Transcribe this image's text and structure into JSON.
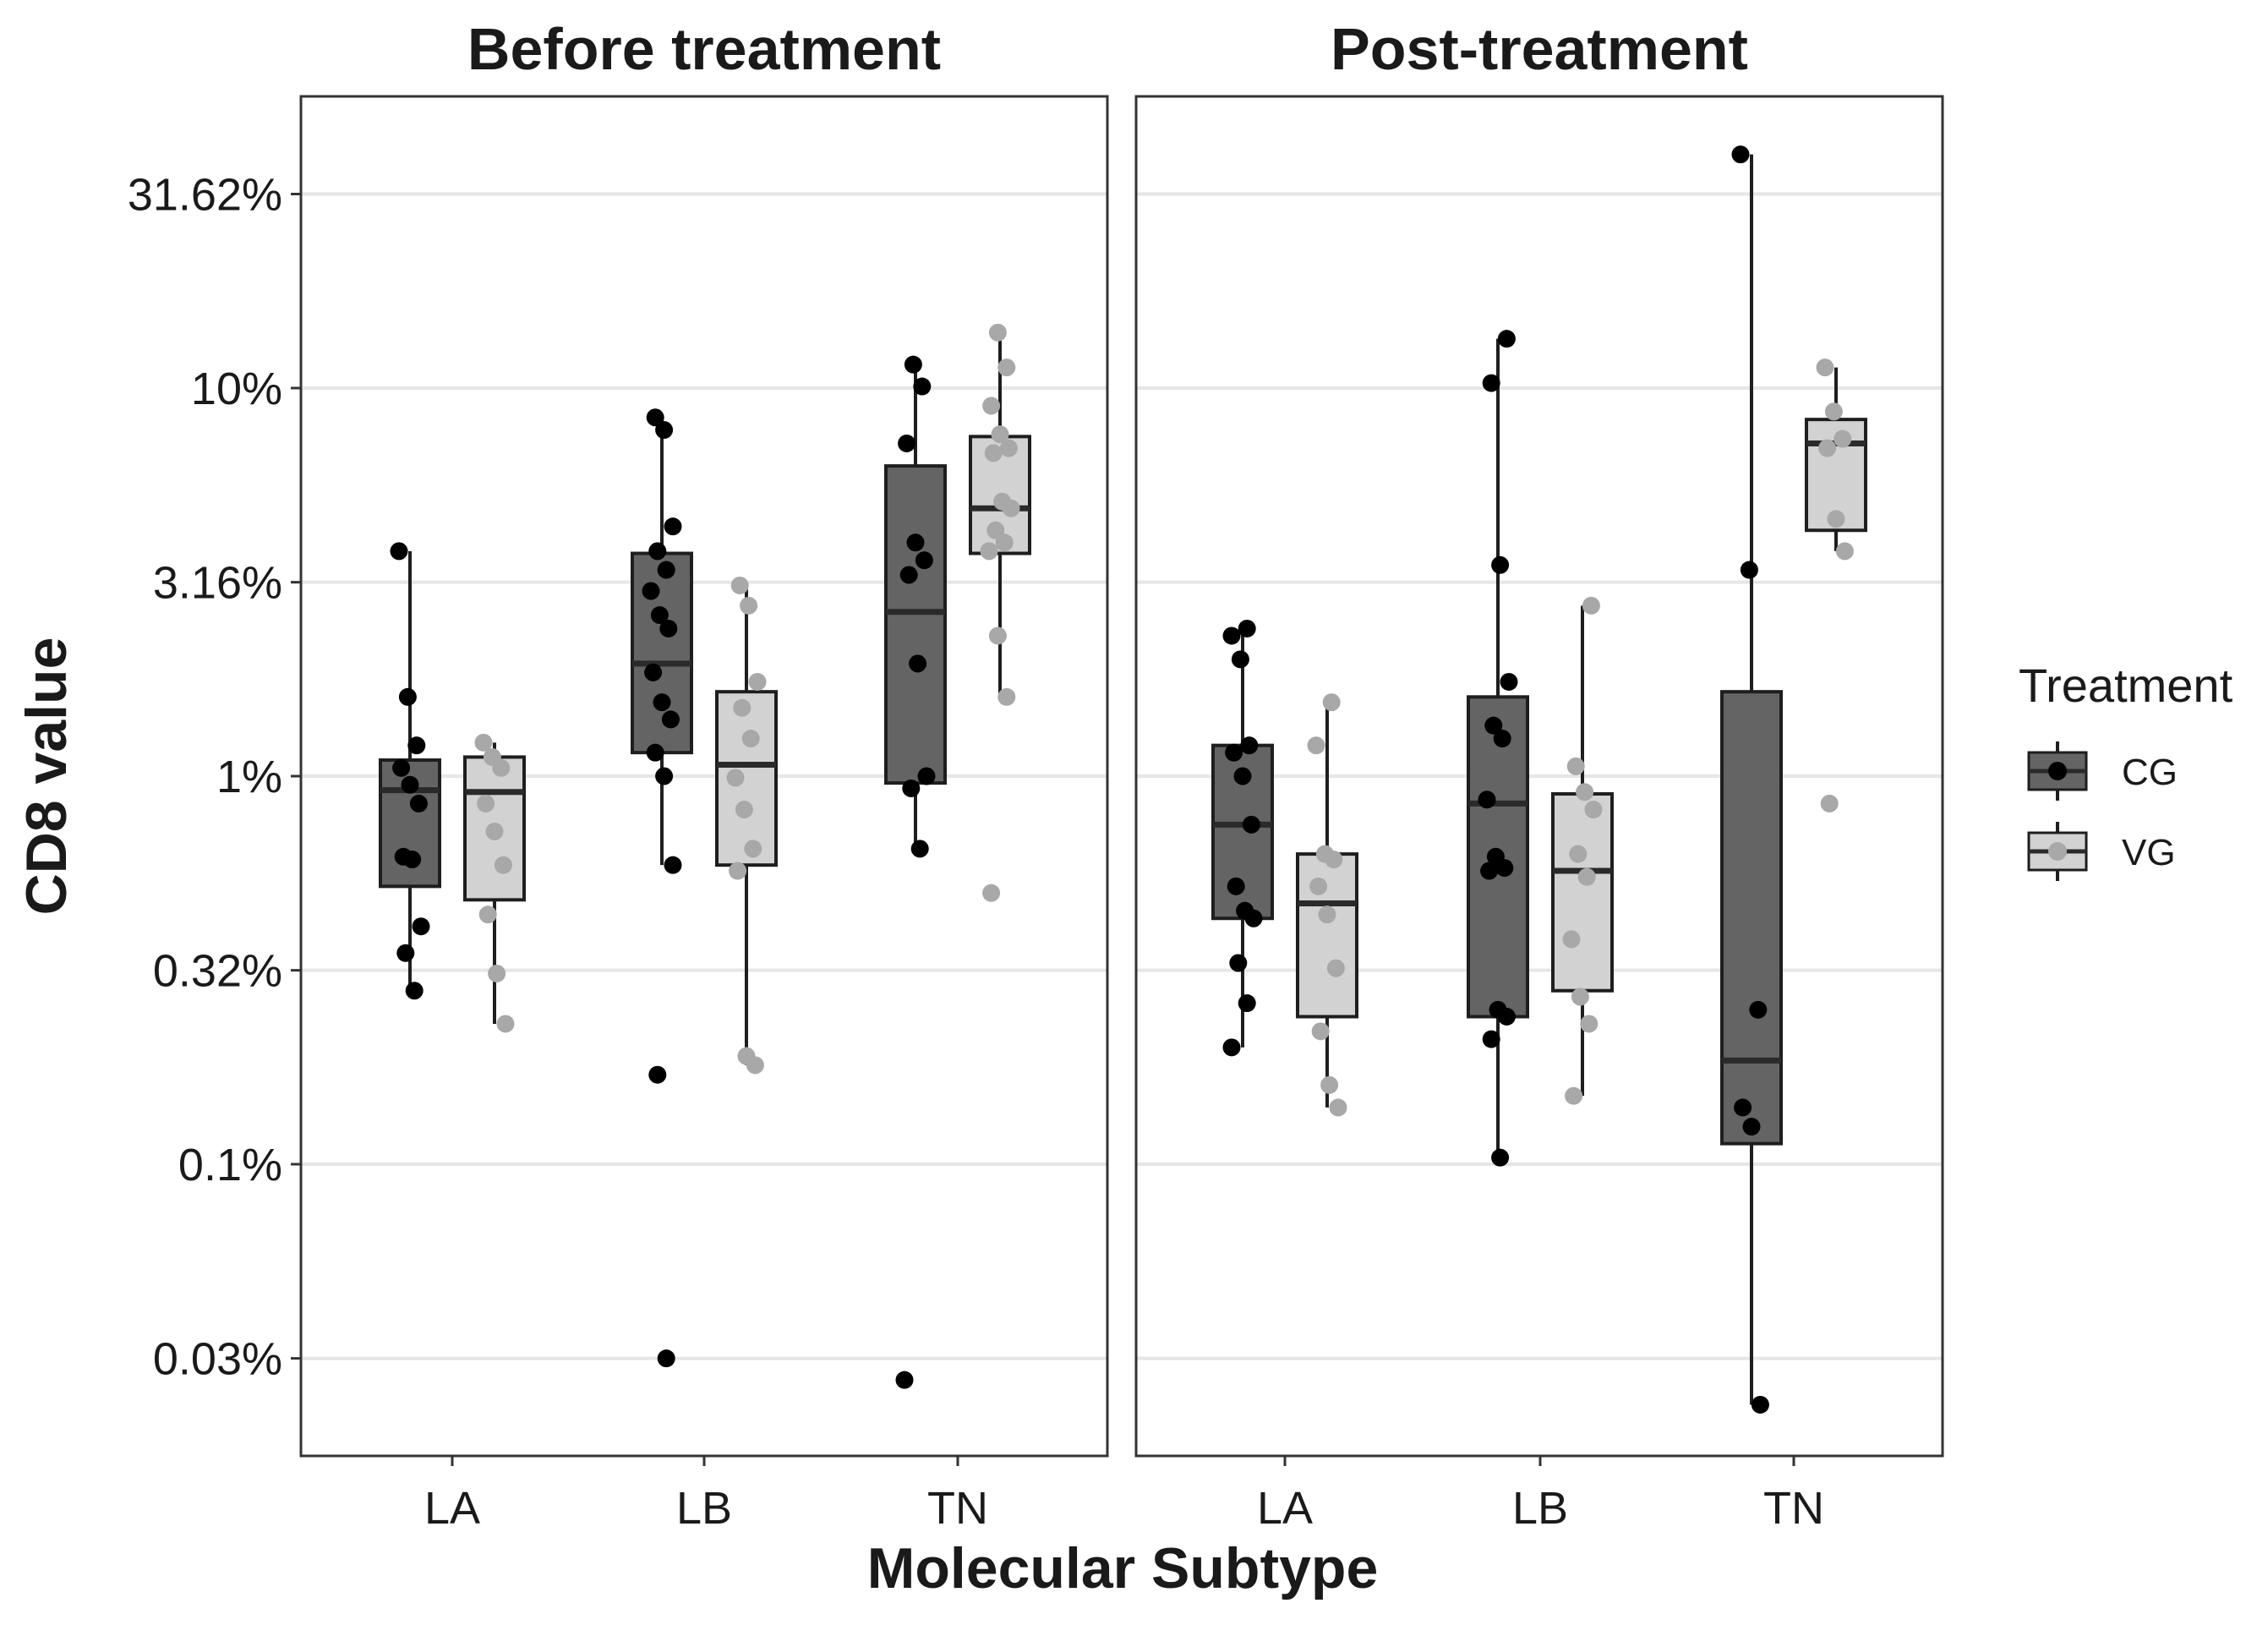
{
  "chart_data": {
    "type": "box",
    "xlabel": "Molecular Subtype",
    "ylabel": "CD8 value",
    "y_scale": "log10",
    "ylim": [
      0.02,
      50
    ],
    "y_ticks": [
      {
        "value": 0.0316,
        "label": "0.03%"
      },
      {
        "value": 0.1,
        "label": "0.1%"
      },
      {
        "value": 0.316,
        "label": "0.32%"
      },
      {
        "value": 1,
        "label": "1%"
      },
      {
        "value": 3.16,
        "label": "3.16%"
      },
      {
        "value": 10,
        "label": "10%"
      },
      {
        "value": 31.62,
        "label": "31.62%"
      }
    ],
    "categories": [
      "LA",
      "LB",
      "TN"
    ],
    "grid": true,
    "legend": {
      "title": "Treatment",
      "position": "right",
      "entries": [
        {
          "name": "CG",
          "fill": "#646464",
          "point": "#000000"
        },
        {
          "name": "VG",
          "fill": "#d2d2d2",
          "point": "#a8a8a8"
        }
      ]
    },
    "panels": [
      {
        "title": "Before treatment",
        "groups": [
          {
            "category": "LA",
            "series": "CG",
            "q1": 0.52,
            "median": 0.92,
            "q3": 1.1,
            "whisker_low": 0.28,
            "whisker_high": 3.8,
            "points": [
              3.8,
              1.6,
              1.2,
              1.05,
              0.95,
              0.85,
              0.62,
              0.61,
              0.41,
              0.35,
              0.28
            ]
          },
          {
            "category": "LA",
            "series": "VG",
            "q1": 0.48,
            "median": 0.91,
            "q3": 1.12,
            "whisker_low": 0.23,
            "whisker_high": 1.22,
            "points": [
              1.22,
              1.12,
              1.05,
              0.85,
              0.72,
              0.59,
              0.44,
              0.31,
              0.23
            ]
          },
          {
            "category": "LB",
            "series": "CG",
            "q1": 1.15,
            "median": 1.95,
            "q3": 3.75,
            "whisker_low": 0.59,
            "whisker_high": 8.4,
            "points": [
              8.4,
              7.8,
              4.4,
              3.8,
              3.4,
              3.0,
              2.6,
              2.4,
              1.85,
              1.55,
              1.4,
              1.15,
              1.0,
              0.59,
              0.17,
              0.0316
            ]
          },
          {
            "category": "LB",
            "series": "VG",
            "q1": 0.59,
            "median": 1.07,
            "q3": 1.65,
            "whisker_low": 0.18,
            "whisker_high": 3.1,
            "points": [
              3.1,
              2.75,
              1.75,
              1.5,
              1.25,
              0.99,
              0.82,
              0.65,
              0.57,
              0.19,
              0.18
            ]
          },
          {
            "category": "TN",
            "series": "CG",
            "q1": 0.96,
            "median": 2.65,
            "q3": 6.3,
            "whisker_low": 0.65,
            "whisker_high": 11.5,
            "points": [
              11.5,
              10.1,
              7.2,
              4.0,
              3.6,
              3.3,
              1.95,
              1.0,
              0.93,
              0.65,
              0.0278
            ]
          },
          {
            "category": "TN",
            "series": "VG",
            "q1": 3.75,
            "median": 4.9,
            "q3": 7.5,
            "whisker_low": 1.6,
            "whisker_high": 13.9,
            "points": [
              13.9,
              11.3,
              9.0,
              7.6,
              7.0,
              6.8,
              5.1,
              4.9,
              4.3,
              4.0,
              3.8,
              2.3,
              1.6,
              0.5
            ]
          }
        ]
      },
      {
        "title": "Post-treatment",
        "groups": [
          {
            "category": "LA",
            "series": "CG",
            "q1": 0.43,
            "median": 0.75,
            "q3": 1.2,
            "whisker_low": 0.2,
            "whisker_high": 2.4,
            "points": [
              2.4,
              2.3,
              2.0,
              1.2,
              1.15,
              1.0,
              0.75,
              0.52,
              0.45,
              0.43,
              0.33,
              0.26,
              0.2
            ]
          },
          {
            "category": "LA",
            "series": "VG",
            "q1": 0.24,
            "median": 0.47,
            "q3": 0.63,
            "whisker_low": 0.14,
            "whisker_high": 1.55,
            "points": [
              1.55,
              1.2,
              0.63,
              0.61,
              0.52,
              0.44,
              0.32,
              0.22,
              0.16,
              0.14
            ]
          },
          {
            "category": "LB",
            "series": "CG",
            "q1": 0.24,
            "median": 0.85,
            "q3": 1.6,
            "whisker_low": 0.104,
            "whisker_high": 13.4,
            "points": [
              13.4,
              10.3,
              3.5,
              1.75,
              1.35,
              1.25,
              0.87,
              0.62,
              0.58,
              0.57,
              0.25,
              0.24,
              0.21,
              0.104
            ]
          },
          {
            "category": "LB",
            "series": "VG",
            "q1": 0.28,
            "median": 0.57,
            "q3": 0.9,
            "whisker_low": 0.15,
            "whisker_high": 2.75,
            "points": [
              2.75,
              1.06,
              0.91,
              0.82,
              0.63,
              0.55,
              0.38,
              0.27,
              0.23,
              0.15
            ]
          },
          {
            "category": "TN",
            "series": "CG",
            "q1": 0.113,
            "median": 0.185,
            "q3": 1.65,
            "whisker_low": 0.024,
            "whisker_high": 40,
            "points": [
              40,
              3.4,
              0.25,
              0.14,
              0.125,
              0.024
            ]
          },
          {
            "category": "TN",
            "series": "VG",
            "q1": 4.3,
            "median": 7.2,
            "q3": 8.3,
            "whisker_low": 3.8,
            "whisker_high": 11.3,
            "points": [
              11.3,
              8.7,
              7.4,
              7.0,
              4.6,
              3.8,
              0.85
            ]
          }
        ]
      }
    ]
  }
}
